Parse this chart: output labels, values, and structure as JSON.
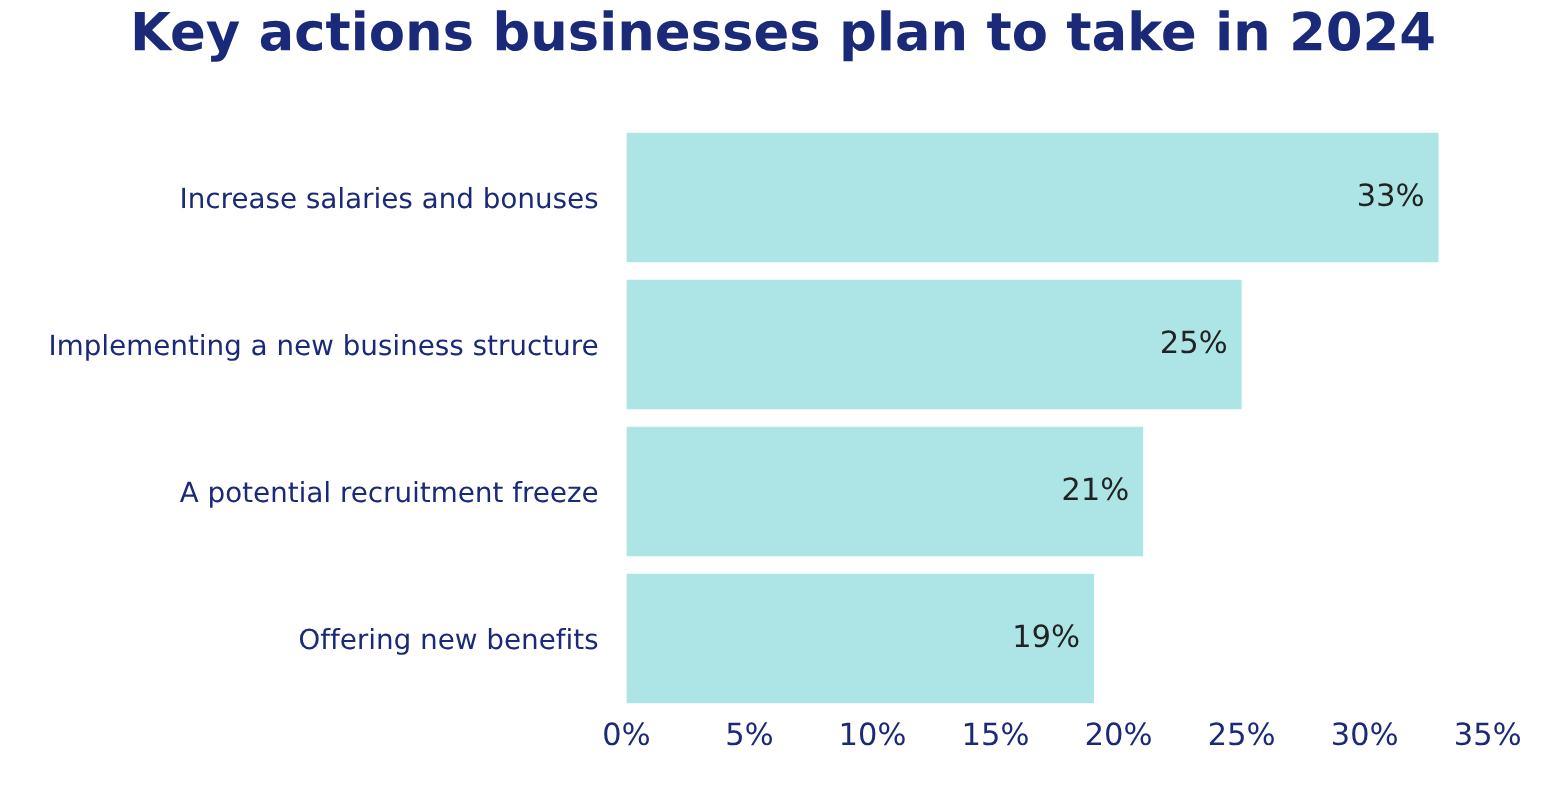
{
  "chart_data": {
    "type": "bar",
    "orientation": "horizontal",
    "title": "Key actions businesses plan to take in 2024",
    "categories": [
      "Increase salaries and bonuses",
      "Implementing a new business structure",
      "A potential recruitment freeze",
      "Offering new benefits"
    ],
    "values": [
      33,
      25,
      21,
      19
    ],
    "color": "#ade5e6",
    "data_labels": true,
    "value_labels": [
      "33%",
      "25%",
      "21%",
      "19%"
    ],
    "xlim": [
      0,
      35
    ],
    "xticks": [
      {
        "value": 0,
        "label": "0%"
      },
      {
        "value": 5,
        "label": "5%"
      },
      {
        "value": 10,
        "label": "10%"
      },
      {
        "value": 15,
        "label": "15%"
      },
      {
        "value": 20,
        "label": "20%"
      },
      {
        "value": 25,
        "label": "25%"
      },
      {
        "value": 30,
        "label": "30%"
      },
      {
        "value": 35,
        "label": "35%"
      }
    ],
    "grid": false,
    "legend": false
  }
}
